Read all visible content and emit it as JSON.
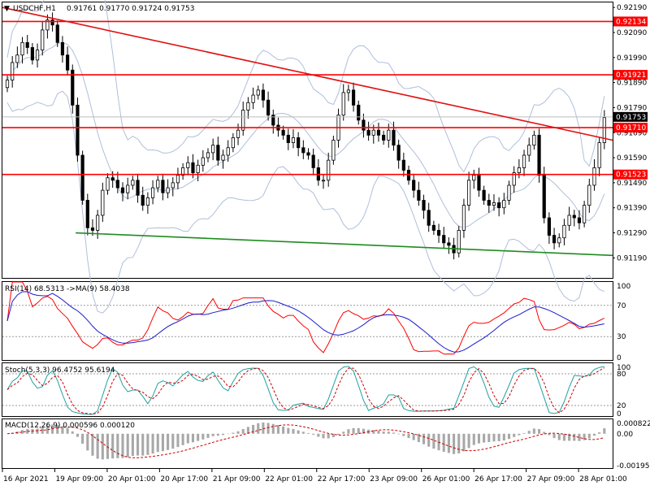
{
  "header": {
    "symbol": "USDCHF,H1",
    "ohlc": "0.91761 0.91770 0.91724 0.91753"
  },
  "colors": {
    "bull": "#000000",
    "bear": "#000000",
    "bollinger": "#aebfda",
    "resistance": "#ff0000",
    "trend_down": "#e01010",
    "trend_support": "#1f8c1f",
    "rsi": "#ff0000",
    "rsi_ma": "#1a1acc",
    "stoch_main": "#20a0a0",
    "stoch_signal": "#cc0000",
    "macd_hist": "#a8a8a8",
    "macd_signal": "#cc0000",
    "last_price": "#000000"
  },
  "chart_data": [
    {
      "type": "candlestick",
      "title": "USDCHF,H1",
      "ylim": [
        0.9111,
        0.9221
      ],
      "y_ticks": [
        "0.92190",
        "0.92090",
        "0.91990",
        "0.91890",
        "0.91790",
        "0.91690",
        "0.91590",
        "0.91490",
        "0.91390",
        "0.91290",
        "0.91190"
      ],
      "x_labels": [
        "16 Apr 2021",
        "19 Apr 09:00",
        "20 Apr 01:00",
        "20 Apr 17:00",
        "21 Apr 09:00",
        "22 Apr 01:00",
        "22 Apr 17:00",
        "23 Apr 09:00",
        "26 Apr 01:00",
        "26 Apr 17:00",
        "27 Apr 09:00",
        "28 Apr 01:00"
      ],
      "price_levels": [
        {
          "label": "0.92134",
          "value": 0.92134
        },
        {
          "label": "0.91921",
          "value": 0.91921
        },
        {
          "label": "0.91753",
          "value": 0.91753,
          "kind": "last"
        },
        {
          "label": "0.91710",
          "value": 0.9171
        },
        {
          "label": "0.91523",
          "value": 0.91523
        }
      ],
      "trendlines": [
        {
          "name": "descending resistance",
          "points": [
            [
              0.9219,
              0
            ],
            [
              0.9166,
              1
            ]
          ]
        },
        {
          "name": "descending support",
          "points": [
            [
              0.9129,
              0.12
            ],
            [
              0.912,
              1
            ]
          ]
        }
      ],
      "closes": [
        0.919,
        0.9197,
        0.92,
        0.9205,
        0.9203,
        0.9198,
        0.9202,
        0.921,
        0.9214,
        0.9212,
        0.9205,
        0.92,
        0.9194,
        0.918,
        0.916,
        0.9142,
        0.9131,
        0.913,
        0.9136,
        0.9146,
        0.9151,
        0.915,
        0.9147,
        0.9145,
        0.9148,
        0.915,
        0.9144,
        0.914,
        0.9143,
        0.9147,
        0.915,
        0.9145,
        0.9147,
        0.9149,
        0.9152,
        0.9155,
        0.9157,
        0.9153,
        0.9156,
        0.9159,
        0.9161,
        0.9164,
        0.9158,
        0.916,
        0.9163,
        0.9167,
        0.917,
        0.9178,
        0.9181,
        0.9184,
        0.9186,
        0.9182,
        0.9176,
        0.9172,
        0.917,
        0.9168,
        0.9165,
        0.9167,
        0.9163,
        0.9161,
        0.916,
        0.9155,
        0.915,
        0.915,
        0.9158,
        0.9166,
        0.9176,
        0.9185,
        0.9186,
        0.918,
        0.9174,
        0.917,
        0.9168,
        0.917,
        0.9168,
        0.9166,
        0.917,
        0.9164,
        0.9158,
        0.9154,
        0.915,
        0.9146,
        0.9142,
        0.9138,
        0.9132,
        0.913,
        0.9128,
        0.9125,
        0.9124,
        0.9121,
        0.913,
        0.914,
        0.915,
        0.9152,
        0.9146,
        0.9142,
        0.914,
        0.9141,
        0.9139,
        0.9142,
        0.9148,
        0.9153,
        0.9155,
        0.916,
        0.9164,
        0.9168,
        0.9152,
        0.9135,
        0.9128,
        0.9125,
        0.9127,
        0.9132,
        0.9136,
        0.9135,
        0.9133,
        0.914,
        0.9148,
        0.9155,
        0.9165,
        0.9175
      ],
      "rsi_ylim": [
        0,
        100
      ],
      "rsi_ticks": [
        "100",
        "70",
        "30",
        "0"
      ],
      "rsi_label": "RSI(14) 68.5313 ->MA(9) 58.4038",
      "stoch_ylim": [
        0,
        100
      ],
      "stoch_ticks": [
        "100",
        "80",
        "20",
        "0"
      ],
      "stoch_label": "Stoch(5,3,3) 96.4752 95.6194",
      "macd_ticks": [
        "0.000822",
        "0.00",
        "-0.001953"
      ],
      "macd_label": "MACD(12,26,9) 0.000596 0.000120"
    }
  ]
}
